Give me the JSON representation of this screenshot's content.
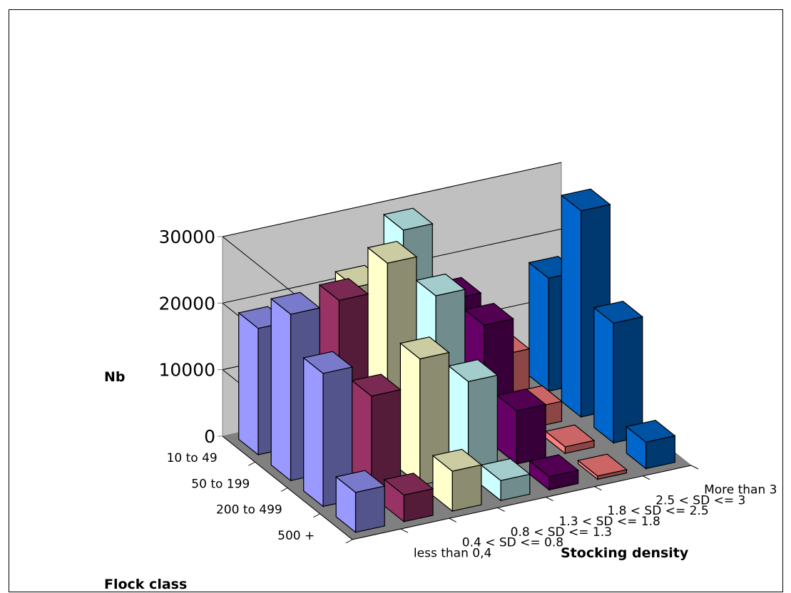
{
  "chart_data": {
    "type": "bar",
    "subtype": "3d-column",
    "title": "",
    "xlabel": "Flock class",
    "ylabel": "Stocking density",
    "zlabel": "Nb",
    "zlim": [
      0,
      30000
    ],
    "yticks": [
      "0",
      "10000",
      "20000",
      "30000"
    ],
    "grid": true,
    "legend": "none",
    "categories": [
      "10 to 49",
      "50 to 199",
      "200 to 499",
      "500 +"
    ],
    "series": [
      {
        "name": "less than 0,4",
        "color": "#9999ff",
        "values": [
          19000,
          25000,
          20000,
          6000
        ]
      },
      {
        "name": "0.4 < SD <= 0.8",
        "color": "#993366",
        "values": [
          10000,
          25500,
          15000,
          4000
        ]
      },
      {
        "name": "0.8 < SD <= 1.3",
        "color": "#ffffcc",
        "values": [
          22000,
          29500,
          19000,
          6000
        ]
      },
      {
        "name": "1.3 < SD <= 1.8",
        "color": "#ccffff",
        "values": [
          29000,
          23000,
          14000,
          3000
        ]
      },
      {
        "name": "1.8 < SD <= 2.5",
        "color": "#660066",
        "values": [
          17000,
          17000,
          8000,
          2000
        ]
      },
      {
        "name": "2.5 < SD <= 3",
        "color": "#ff8080",
        "values": [
          7000,
          3000,
          1000,
          500
        ]
      },
      {
        "name": "More than 3",
        "color": "#0066cc",
        "values": [
          17000,
          31000,
          18000,
          4000
        ]
      }
    ]
  }
}
